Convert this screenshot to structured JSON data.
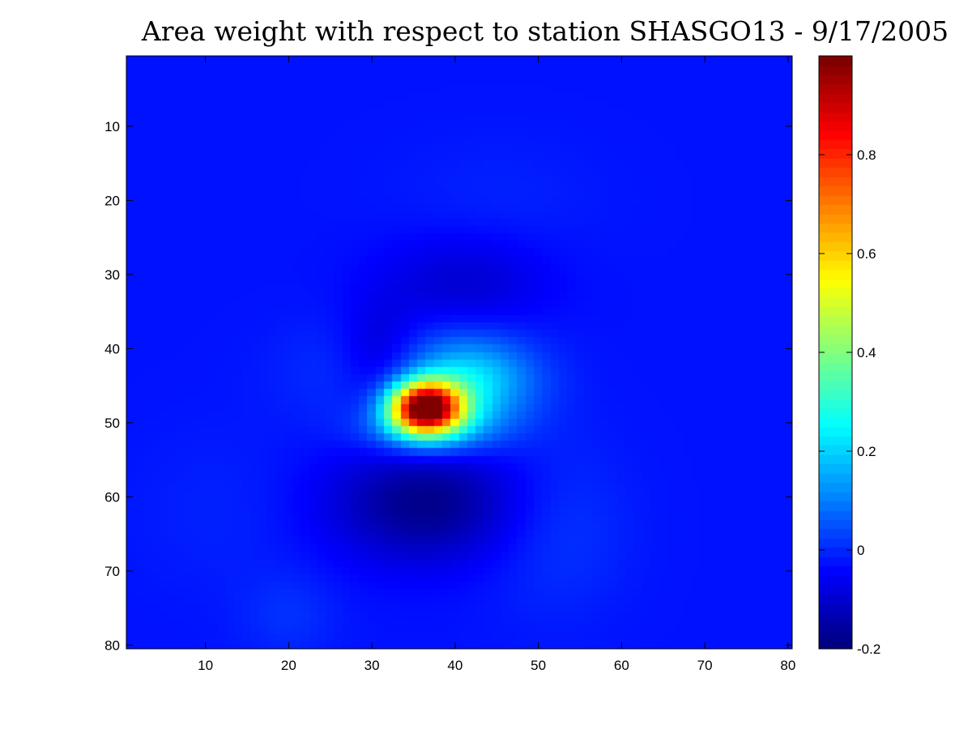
{
  "chart_data": {
    "type": "heatmap",
    "title": "Area weight with respect to station SHASGO13 - 9/17/2005",
    "xlabel": "",
    "ylabel": "",
    "grid_size": [
      80,
      80
    ],
    "xlim": [
      0.5,
      80.5
    ],
    "ylim": [
      0.5,
      80.5
    ],
    "y_axis_reversed": true,
    "x_ticks": [
      10,
      20,
      30,
      40,
      50,
      60,
      70,
      80
    ],
    "x_tick_labels": [
      "10",
      "20",
      "30",
      "40",
      "50",
      "60",
      "70",
      "80"
    ],
    "y_ticks": [
      10,
      20,
      30,
      40,
      50,
      60,
      70,
      80
    ],
    "y_tick_labels": [
      "10",
      "20",
      "30",
      "40",
      "50",
      "60",
      "70",
      "80"
    ],
    "colormap": "jet",
    "clim": [
      -0.2,
      1.0
    ],
    "colorbar": {
      "placement": "right",
      "ticks": [
        -0.2,
        0,
        0.2,
        0.4,
        0.6,
        0.8
      ],
      "tick_labels": [
        "-0.2",
        "0",
        "0.2",
        "0.4",
        "0.6",
        "0.8"
      ]
    },
    "background_value": -0.03,
    "features": [
      {
        "type": "peak",
        "x": 36,
        "y": 48,
        "value": 1.0
      },
      {
        "type": "positive_lobe",
        "x": 42,
        "y": 44,
        "value": 0.28
      },
      {
        "type": "negative_lobe",
        "x": 36,
        "y": 61,
        "value": -0.19
      },
      {
        "type": "negative_lobe",
        "x": 42,
        "y": 30,
        "value": -0.1
      },
      {
        "type": "negative_lobe",
        "x": 31,
        "y": 42,
        "value": -0.1
      },
      {
        "type": "positive_lobe",
        "x": 52,
        "y": 64,
        "value": 0.03
      },
      {
        "type": "positive_lobe",
        "x": 20,
        "y": 76,
        "value": 0.02
      },
      {
        "type": "positive_lobe",
        "x": 26,
        "y": 43,
        "value": 0.02
      }
    ]
  }
}
